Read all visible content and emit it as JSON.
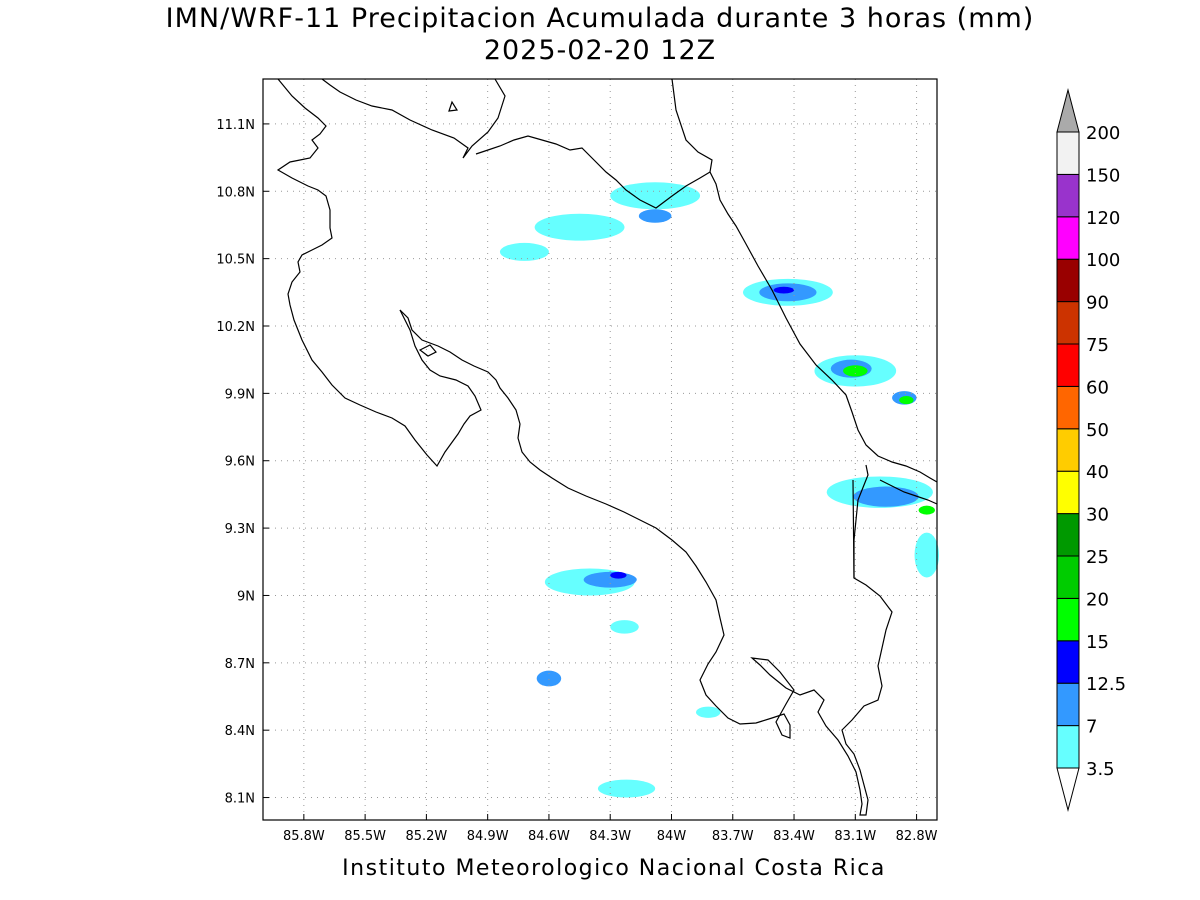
{
  "title": "IMN/WRF-11 Precipitacion Acumulada durante 3 horas (mm)",
  "subtitle": "2025-02-20 12Z",
  "credit": "Instituto Meteorologico Nacional Costa Rica",
  "map": {
    "lon_range": [
      -86.0,
      -82.7
    ],
    "lat_range": [
      8.0,
      11.3
    ],
    "lon_ticks": [
      {
        "value": -85.8,
        "label": "85.8W"
      },
      {
        "value": -85.5,
        "label": "85.5W"
      },
      {
        "value": -85.2,
        "label": "85.2W"
      },
      {
        "value": -84.9,
        "label": "84.9W"
      },
      {
        "value": -84.6,
        "label": "84.6W"
      },
      {
        "value": -84.3,
        "label": "84.3W"
      },
      {
        "value": -84.0,
        "label": "84W"
      },
      {
        "value": -83.7,
        "label": "83.7W"
      },
      {
        "value": -83.4,
        "label": "83.4W"
      },
      {
        "value": -83.1,
        "label": "83.1W"
      },
      {
        "value": -82.8,
        "label": "82.8W"
      }
    ],
    "lat_ticks": [
      {
        "value": 11.1,
        "label": "11.1N"
      },
      {
        "value": 10.8,
        "label": "10.8N"
      },
      {
        "value": 10.5,
        "label": "10.5N"
      },
      {
        "value": 10.2,
        "label": "10.2N"
      },
      {
        "value": 9.9,
        "label": "9.9N"
      },
      {
        "value": 9.6,
        "label": "9.6N"
      },
      {
        "value": 9.3,
        "label": "9.3N"
      },
      {
        "value": 9.0,
        "label": "9N"
      },
      {
        "value": 8.7,
        "label": "8.7N"
      },
      {
        "value": 8.4,
        "label": "8.4N"
      },
      {
        "value": 8.1,
        "label": "8.1N"
      }
    ],
    "grid": true
  },
  "colorbar": {
    "levels": [
      "3.5",
      "7",
      "12.5",
      "15",
      "20",
      "25",
      "30",
      "40",
      "50",
      "60",
      "75",
      "90",
      "100",
      "120",
      "150",
      "200"
    ],
    "colors": [
      "#66ffff",
      "#3399ff",
      "#0000ff",
      "#00ff00",
      "#00cc00",
      "#009900",
      "#ffff00",
      "#ffcc00",
      "#ff6600",
      "#ff0000",
      "#cc3300",
      "#990000",
      "#ff00ff",
      "#9933cc",
      "#f2f2f2"
    ],
    "low_arrow_color": "#ffffff",
    "high_arrow_color": "#aaaaaa"
  },
  "chart_data": {
    "type": "heatmap",
    "title": "IMN/WRF-11 Precipitacion Acumulada durante 3 horas (mm)",
    "subtitle": "2025-02-20 12Z",
    "xlabel": "",
    "ylabel": "",
    "xlim": [
      -86.0,
      -82.7
    ],
    "ylim": [
      8.0,
      11.3
    ],
    "units": "mm",
    "precip_areas": [
      {
        "lon": -84.08,
        "lat": 10.78,
        "rx": 0.22,
        "ry": 0.06,
        "level": "3.5",
        "color": "#66ffff"
      },
      {
        "lon": -84.45,
        "lat": 10.64,
        "rx": 0.22,
        "ry": 0.06,
        "level": "3.5",
        "color": "#66ffff"
      },
      {
        "lon": -84.72,
        "lat": 10.53,
        "rx": 0.12,
        "ry": 0.04,
        "level": "3.5",
        "color": "#66ffff"
      },
      {
        "lon": -84.08,
        "lat": 10.69,
        "rx": 0.08,
        "ry": 0.03,
        "level": "7",
        "color": "#3399ff"
      },
      {
        "lon": -83.43,
        "lat": 10.35,
        "rx": 0.22,
        "ry": 0.06,
        "level": "3.5",
        "color": "#66ffff"
      },
      {
        "lon": -83.43,
        "lat": 10.35,
        "rx": 0.14,
        "ry": 0.04,
        "level": "7",
        "color": "#3399ff"
      },
      {
        "lon": -83.45,
        "lat": 10.36,
        "rx": 0.05,
        "ry": 0.015,
        "level": "12.5",
        "color": "#0000ff"
      },
      {
        "lon": -83.1,
        "lat": 10.0,
        "rx": 0.2,
        "ry": 0.07,
        "level": "3.5",
        "color": "#66ffff"
      },
      {
        "lon": -83.12,
        "lat": 10.01,
        "rx": 0.1,
        "ry": 0.04,
        "level": "7",
        "color": "#3399ff"
      },
      {
        "lon": -83.1,
        "lat": 10.0,
        "rx": 0.06,
        "ry": 0.025,
        "level": "15",
        "color": "#00ff00"
      },
      {
        "lon": -82.86,
        "lat": 9.88,
        "rx": 0.06,
        "ry": 0.03,
        "level": "7",
        "color": "#3399ff"
      },
      {
        "lon": -82.85,
        "lat": 9.87,
        "rx": 0.035,
        "ry": 0.018,
        "level": "15",
        "color": "#00ff00"
      },
      {
        "lon": -82.98,
        "lat": 9.46,
        "rx": 0.26,
        "ry": 0.07,
        "level": "3.5",
        "color": "#66ffff"
      },
      {
        "lon": -82.95,
        "lat": 9.44,
        "rx": 0.16,
        "ry": 0.045,
        "level": "7",
        "color": "#3399ff"
      },
      {
        "lon": -82.75,
        "lat": 9.38,
        "rx": 0.04,
        "ry": 0.02,
        "level": "15",
        "color": "#00ff00"
      },
      {
        "lon": -84.4,
        "lat": 9.06,
        "rx": 0.22,
        "ry": 0.06,
        "level": "3.5",
        "color": "#66ffff"
      },
      {
        "lon": -84.3,
        "lat": 9.07,
        "rx": 0.13,
        "ry": 0.035,
        "level": "7",
        "color": "#3399ff"
      },
      {
        "lon": -84.26,
        "lat": 9.09,
        "rx": 0.04,
        "ry": 0.015,
        "level": "12.5",
        "color": "#0000ff"
      },
      {
        "lon": -84.6,
        "lat": 8.63,
        "rx": 0.06,
        "ry": 0.035,
        "level": "7",
        "color": "#3399ff"
      },
      {
        "lon": -84.23,
        "lat": 8.86,
        "rx": 0.07,
        "ry": 0.03,
        "level": "3.5",
        "color": "#66ffff"
      },
      {
        "lon": -83.82,
        "lat": 8.48,
        "rx": 0.06,
        "ry": 0.025,
        "level": "3.5",
        "color": "#66ffff"
      },
      {
        "lon": -84.22,
        "lat": 8.14,
        "rx": 0.14,
        "ry": 0.04,
        "level": "3.5",
        "color": "#66ffff"
      },
      {
        "lon": -82.75,
        "lat": 9.18,
        "rx": 0.06,
        "ry": 0.1,
        "level": "3.5",
        "color": "#66ffff"
      }
    ]
  }
}
